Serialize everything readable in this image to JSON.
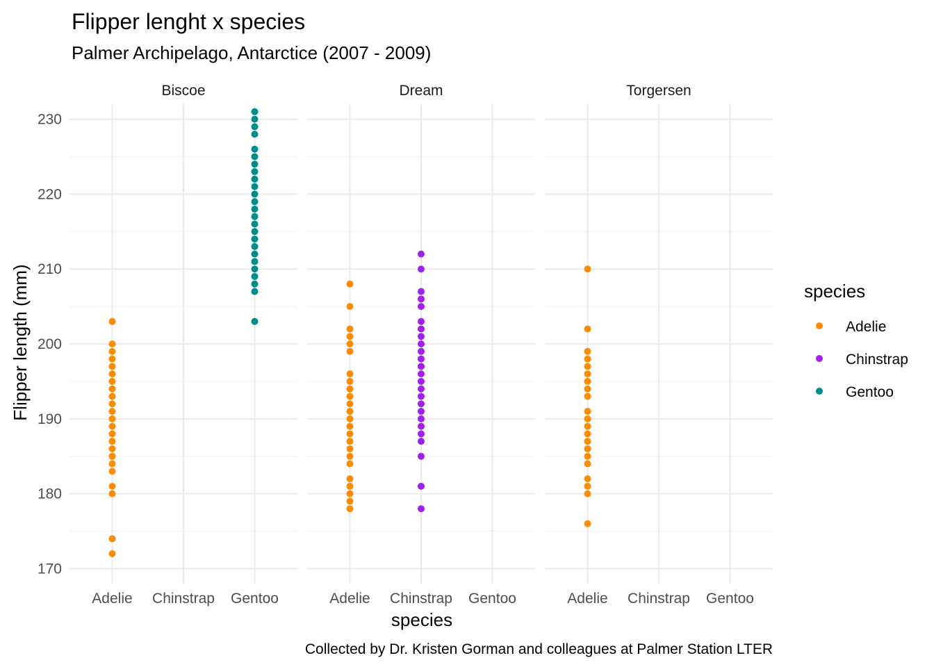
{
  "chart_data": {
    "type": "scatter",
    "title": "Flipper lenght x species",
    "subtitle": "Palmer Archipelago, Antarctice (2007 - 2009)",
    "caption": "Collected by Dr. Kristen Gorman and colleagues at Palmer Station LTER",
    "xlabel": "species",
    "ylabel": "Flipper length (mm)",
    "categories": [
      "Adelie",
      "Chinstrap",
      "Gentoo"
    ],
    "ylim": [
      168,
      232
    ],
    "yticks": [
      170,
      180,
      190,
      200,
      210,
      220,
      230
    ],
    "grid": true,
    "legend": {
      "title": "species",
      "position": "right",
      "items": [
        {
          "label": "Adelie",
          "color": "#FF8C00"
        },
        {
          "label": "Chinstrap",
          "color": "#A020F0"
        },
        {
          "label": "Gentoo",
          "color": "#008B8B"
        }
      ]
    },
    "facets": [
      {
        "name": "Biscoe",
        "series": [
          {
            "species": "Adelie",
            "values": [
              172,
              174,
              180,
              181,
              183,
              184,
              185,
              186,
              187,
              188,
              189,
              190,
              191,
              192,
              193,
              194,
              195,
              196,
              197,
              198,
              199,
              200,
              203
            ]
          },
          {
            "species": "Chinstrap",
            "values": []
          },
          {
            "species": "Gentoo",
            "values": [
              203,
              207,
              208,
              209,
              210,
              211,
              212,
              213,
              214,
              215,
              216,
              217,
              218,
              219,
              220,
              221,
              222,
              223,
              224,
              225,
              226,
              228,
              229,
              230,
              231
            ]
          }
        ]
      },
      {
        "name": "Dream",
        "series": [
          {
            "species": "Adelie",
            "values": [
              178,
              179,
              180,
              181,
              182,
              184,
              185,
              186,
              187,
              188,
              189,
              190,
              191,
              192,
              193,
              194,
              195,
              196,
              199,
              200,
              201,
              202,
              205,
              208
            ]
          },
          {
            "species": "Chinstrap",
            "values": [
              178,
              181,
              185,
              187,
              188,
              189,
              190,
              191,
              192,
              193,
              194,
              195,
              196,
              197,
              198,
              199,
              200,
              201,
              202,
              203,
              205,
              206,
              207,
              210,
              212
            ]
          },
          {
            "species": "Gentoo",
            "values": []
          }
        ]
      },
      {
        "name": "Torgersen",
        "series": [
          {
            "species": "Adelie",
            "values": [
              176,
              180,
              181,
              182,
              184,
              185,
              186,
              187,
              188,
              189,
              190,
              191,
              193,
              194,
              195,
              196,
              197,
              198,
              199,
              202,
              210
            ]
          },
          {
            "species": "Chinstrap",
            "values": []
          },
          {
            "species": "Gentoo",
            "values": []
          }
        ]
      }
    ]
  }
}
